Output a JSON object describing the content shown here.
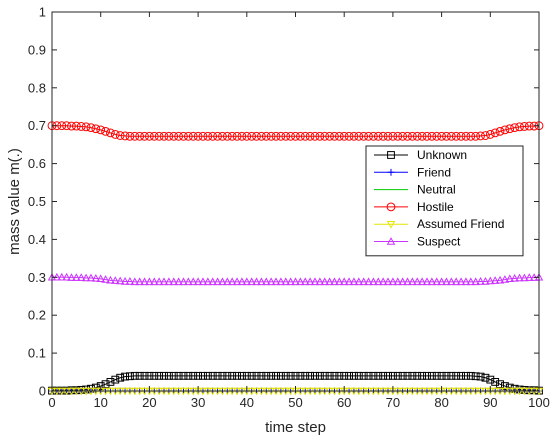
{
  "chart_data": {
    "type": "line",
    "xlabel": "time step",
    "ylabel": "mass value m(.)",
    "xlim": [
      0,
      100
    ],
    "ylim": [
      0,
      1
    ],
    "xticks": [
      "0",
      "10",
      "20",
      "30",
      "40",
      "50",
      "60",
      "70",
      "80",
      "90",
      "100"
    ],
    "yticks": [
      "0",
      "0.1",
      "0.2",
      "0.3",
      "0.4",
      "0.5",
      "0.6",
      "0.7",
      "0.8",
      "0.9",
      "1"
    ],
    "grid": false,
    "legend_position": "right-middle",
    "x": [
      0,
      1,
      2,
      3,
      4,
      5,
      6,
      7,
      8,
      9,
      10,
      11,
      12,
      13,
      14,
      15,
      16,
      17,
      18,
      19,
      20,
      21,
      22,
      23,
      24,
      25,
      26,
      27,
      28,
      29,
      30,
      31,
      32,
      33,
      34,
      35,
      36,
      37,
      38,
      39,
      40,
      41,
      42,
      43,
      44,
      45,
      46,
      47,
      48,
      49,
      50,
      51,
      52,
      53,
      54,
      55,
      56,
      57,
      58,
      59,
      60,
      61,
      62,
      63,
      64,
      65,
      66,
      67,
      68,
      69,
      70,
      71,
      72,
      73,
      74,
      75,
      76,
      77,
      78,
      79,
      80,
      81,
      82,
      83,
      84,
      85,
      86,
      87,
      88,
      89,
      90,
      91,
      92,
      93,
      94,
      95,
      96,
      97,
      98,
      99,
      100
    ],
    "series": [
      {
        "name": "Unknown",
        "color": "#000000",
        "marker": "square",
        "values": [
          0.001,
          0.001,
          0.001,
          0.001,
          0.002,
          0.002,
          0.003,
          0.004,
          0.006,
          0.009,
          0.013,
          0.018,
          0.024,
          0.03,
          0.035,
          0.038,
          0.039,
          0.04,
          0.04,
          0.04,
          0.04,
          0.04,
          0.04,
          0.04,
          0.04,
          0.04,
          0.04,
          0.04,
          0.04,
          0.04,
          0.04,
          0.04,
          0.04,
          0.04,
          0.04,
          0.04,
          0.04,
          0.04,
          0.04,
          0.04,
          0.04,
          0.04,
          0.04,
          0.04,
          0.04,
          0.04,
          0.04,
          0.04,
          0.04,
          0.04,
          0.04,
          0.04,
          0.04,
          0.04,
          0.04,
          0.04,
          0.04,
          0.04,
          0.04,
          0.04,
          0.04,
          0.04,
          0.04,
          0.04,
          0.04,
          0.04,
          0.04,
          0.04,
          0.04,
          0.04,
          0.04,
          0.04,
          0.04,
          0.04,
          0.04,
          0.04,
          0.04,
          0.04,
          0.04,
          0.04,
          0.04,
          0.04,
          0.04,
          0.04,
          0.04,
          0.04,
          0.04,
          0.039,
          0.038,
          0.035,
          0.03,
          0.024,
          0.018,
          0.013,
          0.009,
          0.006,
          0.004,
          0.003,
          0.002,
          0.002,
          0.001
        ]
      },
      {
        "name": "Friend",
        "color": "#0000ff",
        "marker": "plus",
        "values": [
          0,
          0,
          0,
          0,
          0,
          0,
          0,
          0,
          0,
          0,
          0,
          0,
          0,
          0,
          0,
          0,
          0,
          0,
          0,
          0,
          0,
          0,
          0,
          0,
          0,
          0,
          0,
          0,
          0,
          0,
          0,
          0,
          0,
          0,
          0,
          0,
          0,
          0,
          0,
          0,
          0,
          0,
          0,
          0,
          0,
          0,
          0,
          0,
          0,
          0,
          0,
          0,
          0,
          0,
          0,
          0,
          0,
          0,
          0,
          0,
          0,
          0,
          0,
          0,
          0,
          0,
          0,
          0,
          0,
          0,
          0,
          0,
          0,
          0,
          0,
          0,
          0,
          0,
          0,
          0,
          0,
          0,
          0,
          0,
          0,
          0,
          0,
          0,
          0,
          0,
          0,
          0,
          0,
          0,
          0,
          0,
          0,
          0,
          0,
          0,
          0
        ]
      },
      {
        "name": "Neutral",
        "color": "#00cc00",
        "marker": "none",
        "values": [
          0,
          0,
          0,
          0,
          0,
          0,
          0,
          0,
          0,
          0,
          0,
          0,
          0,
          0,
          0,
          0,
          0,
          0,
          0,
          0,
          0,
          0,
          0,
          0,
          0,
          0,
          0,
          0,
          0,
          0,
          0,
          0,
          0,
          0,
          0,
          0,
          0,
          0,
          0,
          0,
          0,
          0,
          0,
          0,
          0,
          0,
          0,
          0,
          0,
          0,
          0,
          0,
          0,
          0,
          0,
          0,
          0,
          0,
          0,
          0,
          0,
          0,
          0,
          0,
          0,
          0,
          0,
          0,
          0,
          0,
          0,
          0,
          0,
          0,
          0,
          0,
          0,
          0,
          0,
          0,
          0,
          0,
          0,
          0,
          0,
          0,
          0,
          0,
          0,
          0,
          0,
          0,
          0,
          0,
          0,
          0,
          0,
          0,
          0,
          0,
          0
        ]
      },
      {
        "name": "Hostile",
        "color": "#ff0000",
        "marker": "circle",
        "values": [
          0.7,
          0.7,
          0.7,
          0.7,
          0.699,
          0.699,
          0.698,
          0.697,
          0.695,
          0.692,
          0.689,
          0.685,
          0.681,
          0.677,
          0.674,
          0.673,
          0.672,
          0.672,
          0.672,
          0.672,
          0.672,
          0.672,
          0.672,
          0.672,
          0.672,
          0.672,
          0.672,
          0.672,
          0.672,
          0.672,
          0.672,
          0.672,
          0.672,
          0.672,
          0.672,
          0.672,
          0.672,
          0.672,
          0.672,
          0.672,
          0.672,
          0.672,
          0.672,
          0.672,
          0.672,
          0.672,
          0.672,
          0.672,
          0.672,
          0.672,
          0.672,
          0.672,
          0.672,
          0.672,
          0.672,
          0.672,
          0.672,
          0.672,
          0.672,
          0.672,
          0.672,
          0.672,
          0.672,
          0.672,
          0.672,
          0.672,
          0.672,
          0.672,
          0.672,
          0.672,
          0.672,
          0.672,
          0.672,
          0.672,
          0.672,
          0.672,
          0.672,
          0.672,
          0.672,
          0.672,
          0.672,
          0.672,
          0.672,
          0.672,
          0.672,
          0.672,
          0.672,
          0.672,
          0.673,
          0.674,
          0.677,
          0.681,
          0.685,
          0.689,
          0.692,
          0.695,
          0.697,
          0.698,
          0.699,
          0.699,
          0.7
        ]
      },
      {
        "name": "Assumed Friend",
        "color": "#e6e600",
        "marker": "triangle-down",
        "values": [
          0,
          0,
          0,
          0,
          0,
          0,
          0,
          0,
          0,
          0,
          0,
          0,
          0,
          0,
          0,
          0,
          0,
          0,
          0,
          0,
          0,
          0,
          0,
          0,
          0,
          0,
          0,
          0,
          0,
          0,
          0,
          0,
          0,
          0,
          0,
          0,
          0,
          0,
          0,
          0,
          0,
          0,
          0,
          0,
          0,
          0,
          0,
          0,
          0,
          0,
          0,
          0,
          0,
          0,
          0,
          0,
          0,
          0,
          0,
          0,
          0,
          0,
          0,
          0,
          0,
          0,
          0,
          0,
          0,
          0,
          0,
          0,
          0,
          0,
          0,
          0,
          0,
          0,
          0,
          0,
          0,
          0,
          0,
          0,
          0,
          0,
          0,
          0,
          0,
          0,
          0,
          0,
          0,
          0,
          0,
          0,
          0,
          0,
          0,
          0,
          0
        ]
      },
      {
        "name": "Suspect",
        "color": "#cc33ff",
        "marker": "triangle-up",
        "values": [
          0.3,
          0.3,
          0.3,
          0.3,
          0.299,
          0.299,
          0.299,
          0.298,
          0.298,
          0.297,
          0.296,
          0.294,
          0.292,
          0.291,
          0.29,
          0.289,
          0.289,
          0.288,
          0.288,
          0.288,
          0.288,
          0.288,
          0.288,
          0.288,
          0.288,
          0.288,
          0.288,
          0.288,
          0.288,
          0.288,
          0.288,
          0.288,
          0.288,
          0.288,
          0.288,
          0.288,
          0.288,
          0.288,
          0.288,
          0.288,
          0.288,
          0.288,
          0.288,
          0.288,
          0.288,
          0.288,
          0.288,
          0.288,
          0.288,
          0.288,
          0.288,
          0.288,
          0.288,
          0.288,
          0.288,
          0.288,
          0.288,
          0.288,
          0.288,
          0.288,
          0.288,
          0.288,
          0.288,
          0.288,
          0.288,
          0.288,
          0.288,
          0.288,
          0.288,
          0.288,
          0.288,
          0.288,
          0.288,
          0.288,
          0.288,
          0.288,
          0.288,
          0.288,
          0.288,
          0.288,
          0.288,
          0.288,
          0.288,
          0.288,
          0.288,
          0.288,
          0.288,
          0.288,
          0.289,
          0.289,
          0.29,
          0.291,
          0.292,
          0.294,
          0.296,
          0.297,
          0.298,
          0.298,
          0.299,
          0.299,
          0.3
        ]
      }
    ]
  }
}
